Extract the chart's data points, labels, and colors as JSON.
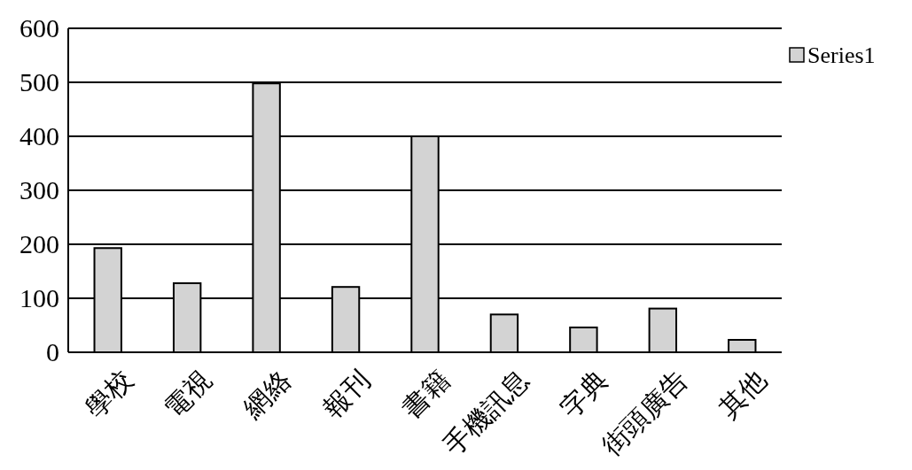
{
  "chart_data": {
    "type": "bar",
    "categories": [
      "學校",
      "電視",
      "網絡",
      "報刊",
      "書籍",
      "手機訊息",
      "字典",
      "街頭廣告",
      "其他"
    ],
    "series": [
      {
        "name": "Series1",
        "color": "#d3d3d3",
        "values": [
          193,
          128,
          498,
          121,
          400,
          70,
          46,
          81,
          23
        ]
      }
    ],
    "ylim": [
      0,
      600
    ],
    "yticks": [
      0,
      100,
      200,
      300,
      400,
      500,
      600
    ],
    "grid": "y",
    "legend": "right"
  }
}
